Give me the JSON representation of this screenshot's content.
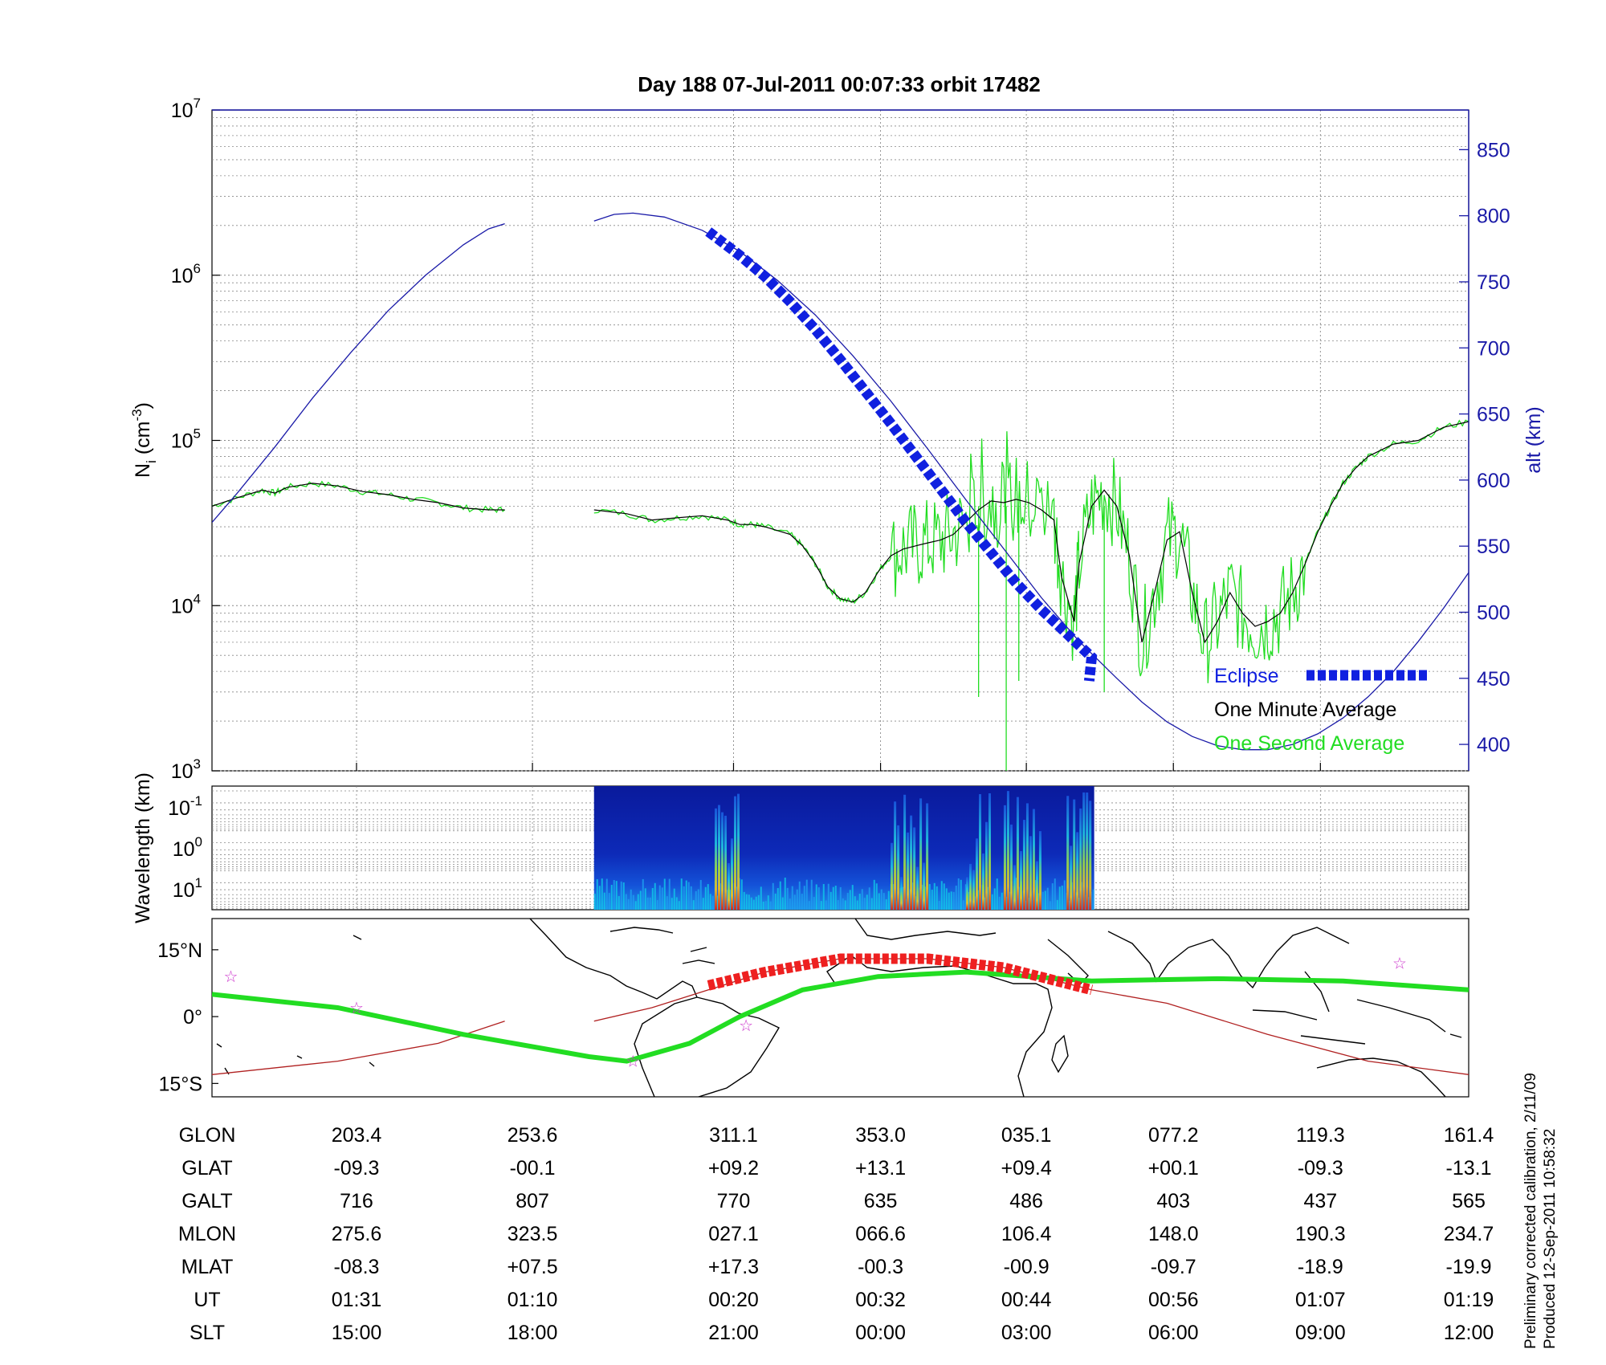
{
  "title": "Day 188  07-Jul-2011 00:07:33   orbit 17482",
  "colors": {
    "alt": "#1a1aa8",
    "one_minute": "#000000",
    "one_second": "#22dd22",
    "eclipse": "#1020e0",
    "track": "#22dd22",
    "orbit": "#b02020",
    "eclipse_track": "#ee2020",
    "stars": "#cc33cc"
  },
  "chart_data": [
    {
      "type": "line",
      "ylabel": "N",
      "ylabel_sub": "i",
      "ylabel_rest": " (cm",
      "ylabel_sup": "-3",
      "ylabel_end": ")",
      "y2label": "alt (km)",
      "yscale": "log",
      "ylim": [
        1000,
        10000000
      ],
      "y_ticks": [
        {
          "value": 1000,
          "base": "10",
          "exp": "3"
        },
        {
          "value": 10000,
          "base": "10",
          "exp": "4"
        },
        {
          "value": 100000,
          "base": "10",
          "exp": "5"
        },
        {
          "value": 1000000,
          "base": "10",
          "exp": "6"
        },
        {
          "value": 10000000,
          "base": "10",
          "exp": "7"
        }
      ],
      "y2lim": [
        380,
        880
      ],
      "y2_ticks": [
        "400",
        "450",
        "500",
        "550",
        "600",
        "650",
        "700",
        "750",
        "800",
        "850"
      ],
      "xlim": [
        0,
        100
      ],
      "grid": true,
      "legend_position": "bottom-right",
      "series": [
        {
          "name": "alt",
          "axis": "right",
          "segments": [
            [
              [
                0,
                568
              ],
              [
                2,
                590
              ],
              [
                5,
                625
              ],
              [
                8,
                662
              ],
              [
                11,
                696
              ],
              [
                14,
                728
              ],
              [
                17,
                755
              ],
              [
                20,
                778
              ],
              [
                22,
                790
              ],
              [
                23.3,
                794
              ]
            ],
            [
              [
                30.4,
                796
              ],
              [
                32,
                801
              ],
              [
                33.5,
                802
              ],
              [
                36,
                799
              ],
              [
                39,
                789
              ],
              [
                42,
                773
              ],
              [
                45,
                751
              ],
              [
                48,
                725
              ],
              [
                51,
                694
              ],
              [
                54,
                660
              ],
              [
                57,
                623
              ],
              [
                60,
                585
              ],
              [
                63,
                548
              ],
              [
                66,
                511
              ],
              [
                69,
                478
              ],
              [
                72,
                450
              ],
              [
                74,
                432
              ],
              [
                76,
                417
              ],
              [
                78,
                406
              ],
              [
                80,
                399
              ],
              [
                82,
                396
              ],
              [
                84,
                396
              ],
              [
                86,
                400
              ],
              [
                88,
                408
              ],
              [
                90,
                420
              ],
              [
                92,
                436
              ],
              [
                94,
                455
              ],
              [
                96,
                478
              ],
              [
                98,
                503
              ],
              [
                100,
                530
              ]
            ]
          ]
        },
        {
          "name": "One Minute Average",
          "axis": "left",
          "segments": [
            [
              [
                0,
                40000
              ],
              [
                2,
                45000
              ],
              [
                4,
                50000
              ],
              [
                5,
                48000
              ],
              [
                6,
                52000
              ],
              [
                8,
                55000
              ],
              [
                10,
                53000
              ],
              [
                12,
                49000
              ],
              [
                14,
                47000
              ],
              [
                16,
                44000
              ],
              [
                18,
                42000
              ],
              [
                20,
                39000
              ],
              [
                22,
                38000
              ],
              [
                23.3,
                38000
              ]
            ],
            [
              [
                30.4,
                38000
              ],
              [
                33,
                36000
              ],
              [
                35,
                33000
              ],
              [
                37,
                34000
              ],
              [
                39,
                35000
              ],
              [
                41,
                33000
              ],
              [
                42,
                31000
              ],
              [
                43,
                31000
              ],
              [
                44,
                30000
              ],
              [
                46,
                27000
              ],
              [
                47,
                23000
              ],
              [
                48,
                18000
              ],
              [
                49,
                13000
              ],
              [
                50,
                11000
              ],
              [
                51,
                10500
              ],
              [
                52,
                12000
              ],
              [
                53,
                16000
              ],
              [
                54,
                20000
              ],
              [
                55,
                22000
              ],
              [
                56,
                23000
              ],
              [
                57,
                24000
              ],
              [
                58,
                25000
              ],
              [
                59,
                27000
              ],
              [
                60,
                32000
              ],
              [
                61,
                38000
              ],
              [
                62,
                43000
              ],
              [
                63,
                42000
              ],
              [
                64,
                44000
              ],
              [
                65,
                42000
              ],
              [
                66,
                38000
              ],
              [
                67,
                33000
              ],
              [
                67.6,
                15000
              ],
              [
                68.6,
                8000
              ],
              [
                69,
                18000
              ],
              [
                70,
                40000
              ],
              [
                71,
                50000
              ],
              [
                72,
                40000
              ],
              [
                73,
                20000
              ],
              [
                74,
                6000
              ],
              [
                75,
                12000
              ],
              [
                76,
                25000
              ],
              [
                77,
                28000
              ],
              [
                78,
                12000
              ],
              [
                79,
                6000
              ],
              [
                80,
                8000
              ],
              [
                81,
                12000
              ],
              [
                82,
                9000
              ],
              [
                83,
                7500
              ],
              [
                84,
                8000
              ],
              [
                85,
                9000
              ],
              [
                86,
                12000
              ],
              [
                87,
                18000
              ],
              [
                88,
                28000
              ],
              [
                89,
                40000
              ],
              [
                90,
                55000
              ],
              [
                91,
                68000
              ],
              [
                92,
                80000
              ],
              [
                94,
                95000
              ],
              [
                96,
                100000
              ],
              [
                98,
                120000
              ],
              [
                100,
                130000
              ]
            ]
          ]
        }
      ],
      "eclipse": [
        [
          39.5,
          788
        ],
        [
          42,
          770
        ],
        [
          44,
          754
        ],
        [
          46,
          735
        ],
        [
          48,
          714
        ],
        [
          50,
          691
        ],
        [
          52,
          667
        ],
        [
          54,
          643
        ],
        [
          56,
          618
        ],
        [
          58,
          593
        ],
        [
          60,
          568
        ],
        [
          62,
          545
        ],
        [
          64,
          522
        ],
        [
          66,
          502
        ],
        [
          68,
          484
        ],
        [
          70,
          466
        ],
        [
          69.8,
          448
        ]
      ],
      "legend": [
        {
          "label": "Eclipse"
        },
        {
          "label": "One Minute Average"
        },
        {
          "label": "One Second Average"
        }
      ]
    },
    {
      "type": "heatmap",
      "ylabel": "Wavelength (km)",
      "yscale": "log",
      "y_ticks": [
        {
          "base": "10",
          "exp": "-1"
        },
        {
          "base": "10",
          "exp": "0"
        },
        {
          "base": "10",
          "exp": "1"
        }
      ],
      "x_start": 30.4,
      "x_end": 70.2,
      "active_bands": [
        [
          40,
          42
        ],
        [
          54,
          57
        ],
        [
          60,
          62
        ],
        [
          63,
          66
        ],
        [
          68,
          70
        ]
      ]
    },
    {
      "type": "map",
      "y_ticks": [
        "15°N",
        "0°",
        "15°S"
      ],
      "ylim": [
        -18,
        22
      ],
      "track": [
        [
          0,
          5
        ],
        [
          10,
          2
        ],
        [
          20,
          -4
        ],
        [
          30,
          -9
        ],
        [
          33,
          -10
        ],
        [
          38,
          -6
        ],
        [
          42,
          0
        ],
        [
          47,
          6
        ],
        [
          53,
          9
        ],
        [
          60,
          10
        ],
        [
          70,
          8
        ],
        [
          80,
          8.5
        ],
        [
          90,
          8
        ],
        [
          100,
          6
        ]
      ],
      "orbit": [
        [
          0,
          -13
        ],
        [
          10,
          -10
        ],
        [
          18,
          -6
        ],
        [
          23.3,
          -1
        ]
      ],
      "orbit2": [
        [
          30.4,
          -1
        ],
        [
          35,
          2
        ],
        [
          39.5,
          6
        ],
        [
          44,
          10
        ],
        [
          50,
          13
        ],
        [
          57,
          13
        ],
        [
          63,
          11
        ],
        [
          70,
          6
        ],
        [
          76,
          3
        ],
        [
          84,
          -4
        ],
        [
          92,
          -10
        ],
        [
          100,
          -13
        ]
      ],
      "eclipse_track": [
        [
          39.5,
          7
        ],
        [
          44,
          10
        ],
        [
          50,
          13
        ],
        [
          57,
          13
        ],
        [
          63,
          11
        ],
        [
          70,
          6
        ]
      ],
      "stars": [
        [
          1.5,
          9
        ],
        [
          11.5,
          2
        ],
        [
          33.5,
          -10
        ],
        [
          42.5,
          -2
        ],
        [
          94.5,
          12
        ]
      ]
    }
  ],
  "table": {
    "rows": [
      {
        "label": "GLON",
        "values": [
          "203.4",
          "253.6",
          "311.1",
          "353.0",
          "035.1",
          "077.2",
          "119.3",
          "161.4"
        ]
      },
      {
        "label": "GLAT",
        "values": [
          "-09.3",
          "-00.1",
          "+09.2",
          "+13.1",
          "+09.4",
          "+00.1",
          "-09.3",
          "-13.1"
        ]
      },
      {
        "label": "GALT",
        "values": [
          "716",
          "807",
          "770",
          "635",
          "486",
          "403",
          "437",
          "565"
        ]
      },
      {
        "label": "MLON",
        "values": [
          "275.6",
          "323.5",
          "027.1",
          "066.6",
          "106.4",
          "148.0",
          "190.3",
          "234.7"
        ]
      },
      {
        "label": "MLAT",
        "values": [
          "-08.3",
          "+07.5",
          "+17.3",
          "-00.3",
          "-00.9",
          "-09.7",
          "-18.9",
          "-19.9"
        ]
      },
      {
        "label": "UT",
        "values": [
          "01:31",
          "01:10",
          "00:20",
          "00:32",
          "00:44",
          "00:56",
          "01:07",
          "01:19"
        ]
      },
      {
        "label": "SLT",
        "values": [
          "15:00",
          "18:00",
          "21:00",
          "00:00",
          "03:00",
          "06:00",
          "09:00",
          "12:00"
        ]
      }
    ],
    "column_positions": [
      11.5,
      25.5,
      41.5,
      53.2,
      64.8,
      76.5,
      88.2,
      100
    ]
  },
  "side_notes": [
    "Preliminary corrected calibration, 2/11/09",
    "Produced 12-Sep-2011 10:58:32"
  ]
}
